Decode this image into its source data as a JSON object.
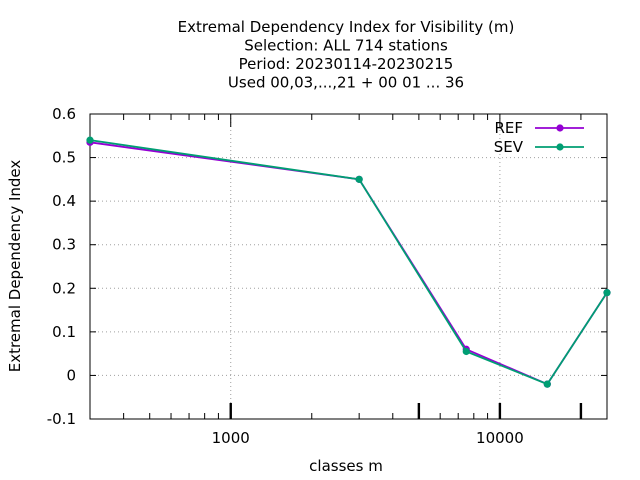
{
  "chart_data": {
    "type": "line",
    "title_lines": [
      "Extremal Dependency Index  for Visibility (m)",
      "Selection: ALL    714 stations",
      "Period: 20230114-20230215",
      "Used  00,03,...,21  + 00 01 ... 36"
    ],
    "xlabel": "classes m",
    "ylabel": "Extremal Dependency Index",
    "x_scale": "log",
    "xlim": [
      300,
      25000
    ],
    "ylim": [
      -0.1,
      0.6
    ],
    "x_ticks": [
      {
        "value": 1000,
        "label": "1000"
      },
      {
        "value": 10000,
        "label": "10000"
      }
    ],
    "x_minor_ticks": [
      5000,
      20000
    ],
    "y_ticks": [
      {
        "value": -0.1,
        "label": "-0.1"
      },
      {
        "value": 0,
        "label": "0"
      },
      {
        "value": 0.1,
        "label": "0.1"
      },
      {
        "value": 0.2,
        "label": "0.2"
      },
      {
        "value": 0.3,
        "label": "0.3"
      },
      {
        "value": 0.4,
        "label": "0.4"
      },
      {
        "value": 0.5,
        "label": "0.5"
      },
      {
        "value": 0.6,
        "label": "0.6"
      }
    ],
    "grid": true,
    "legend_position": "top-right",
    "series": [
      {
        "name": "REF",
        "color": "#9400d3",
        "x": [
          300,
          3000,
          7500,
          15000,
          25000
        ],
        "y": [
          0.535,
          0.45,
          0.06,
          -0.02,
          0.19
        ]
      },
      {
        "name": "SEV",
        "color": "#009e73",
        "x": [
          300,
          3000,
          7500,
          15000,
          25000
        ],
        "y": [
          0.54,
          0.45,
          0.055,
          -0.02,
          0.19
        ]
      }
    ]
  }
}
